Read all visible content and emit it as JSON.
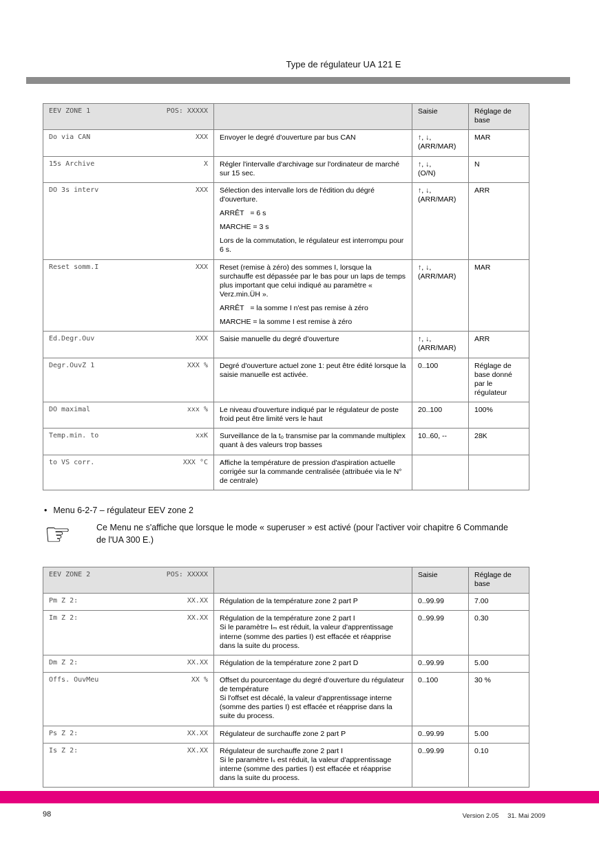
{
  "page": {
    "title": "Type de régulateur UA 121 E",
    "bullet_char": "•",
    "menu_heading": "Menu 6-2-7 – régulateur EEV zone 2",
    "note_text": "Ce Menu ne s'affiche que lorsque le mode « superuser » est activé (pour l'activer voir chapitre 6 Commande de l'UA 300 E.)",
    "footer": {
      "page_number": "98",
      "version": "Version 2.05",
      "date": "31. Mai 2009"
    },
    "colors": {
      "accent": "#e5007d",
      "title_rule": "#8c8c8c",
      "table_header_bg": "#e1e1e1",
      "table_border": "#7f7f7f"
    },
    "icons": {
      "pointing_hand": "☞"
    }
  },
  "tables": [
    {
      "title": "EEV ZONE 1",
      "pos": "POS: XXXXX",
      "saisie_label": "Saisie",
      "base_label": "Réglage de base",
      "rows": [
        {
          "param": "Do via CAN",
          "value": "XXX",
          "desc": [
            "Envoyer le degré d'ouverture par bus CAN"
          ],
          "saisie": "↑, ↓,\n(ARR/MAR)",
          "base": "MAR"
        },
        {
          "param": "15s Archive",
          "value": "X",
          "desc": [
            "Régler l'intervalle d'archivage sur l'ordinateur de marché sur 15 sec."
          ],
          "saisie": "↑, ↓,\n(O/N)",
          "base": "N"
        },
        {
          "param": "DO 3s interv",
          "value": "XXX",
          "desc": [
            "Sélection des intervalle lors de l'édition du dégré d'ouverture.",
            "ARRÊT   = 6 s",
            "MARCHE = 3 s",
            "Lors de la commutation, le régulateur est interrompu pour 6 s."
          ],
          "saisie": "↑, ↓,\n(ARR/MAR)",
          "base": "ARR"
        },
        {
          "param": "Reset somm.I",
          "value": "XXX",
          "desc": [
            "Reset (remise à zéro) des sommes I, lorsque la surchauffe est dépassée par le bas pour un laps de temps plus important que celui indiqué au paramètre « Verz.min.ÜH ».",
            "ARRÊT   = la somme I n'est pas remise à zéro",
            "MARCHE = la somme I est remise à zéro"
          ],
          "saisie": "↑, ↓,\n(ARR/MAR)",
          "base": "MAR"
        },
        {
          "param": "Ed.Degr.Ouv",
          "value": "XXX",
          "desc": [
            "Saisie manuelle du degré d'ouverture"
          ],
          "saisie": "↑, ↓,\n(ARR/MAR)",
          "base": "ARR"
        },
        {
          "param": "Degr.OuvZ 1",
          "value": "XXX %",
          "desc": [
            "Degré d'ouverture actuel zone 1: peut être édité lorsque la saisie manuelle est activée."
          ],
          "saisie": "0..100",
          "base": "Réglage de base donné par le régulateur"
        },
        {
          "param": "DO maximal",
          "value": "xxx %",
          "desc": [
            "Le niveau d'ouverture indiqué par le régulateur de poste froid peut être limité vers le haut"
          ],
          "saisie": "20..100",
          "base": "100%"
        },
        {
          "param": "Temp.min. to",
          "value": "xxK",
          "desc": [
            "Surveillance de la t₀ transmise par la commande multiplex quant à des valeurs trop basses"
          ],
          "saisie": "10..60, --",
          "base": "28K"
        },
        {
          "param": "to VS corr.",
          "value": "XXX °C",
          "desc": [
            "Affiche la température de pression d'aspiration actuelle corrigée sur la commande centralisée (attribuée via le N° de centrale)"
          ],
          "saisie": "",
          "base": ""
        }
      ]
    },
    {
      "title": "EEV ZONE 2",
      "pos": "POS: XXXXX",
      "saisie_label": "Saisie",
      "base_label": "Réglage de base",
      "rows": [
        {
          "param": "Pm Z 2:",
          "value": "XX.XX",
          "desc": [
            "Régulation de la température zone 2 part P"
          ],
          "saisie": "0..99.99",
          "base": "7.00"
        },
        {
          "param": "Im Z 2:",
          "value": "XX.XX",
          "desc": [
            "Régulation de la température zone 2 part I\nSi le paramètre Iₘ est réduit, la valeur d'apprentissage interne (somme des parties I) est effacée et réapprise dans la suite du process."
          ],
          "saisie": "0..99.99",
          "base": "0.30"
        },
        {
          "param": "Dm Z 2:",
          "value": "XX.XX",
          "desc": [
            "Régulation de la température zone 2 part D"
          ],
          "saisie": "0..99.99",
          "base": "5.00"
        },
        {
          "param": "Offs. OuvMeu",
          "value": "XX %",
          "desc": [
            "Offset du pourcentage du degré d'ouverture du régulateur de température\nSi l'offset est décalé, la valeur d'apprentissage interne (somme des parties I) est effacée et réapprise dans la suite du process."
          ],
          "saisie": "0..100",
          "base": "30 %"
        },
        {
          "param": "Ps Z 2:",
          "value": "XX.XX",
          "desc": [
            "Régulateur de surchauffe zone 2 part P"
          ],
          "saisie": "0..99.99",
          "base": "5.00"
        },
        {
          "param": "Is Z 2:",
          "value": "XX.XX",
          "desc": [
            "Régulateur de surchauffe zone 2 part I\nSi le paramètre Iₛ est réduit, la valeur d'apprentissage interne (somme des parties I) est effacée et réapprise dans la suite du process."
          ],
          "saisie": "0..99.99",
          "base": "0.10"
        }
      ]
    }
  ]
}
